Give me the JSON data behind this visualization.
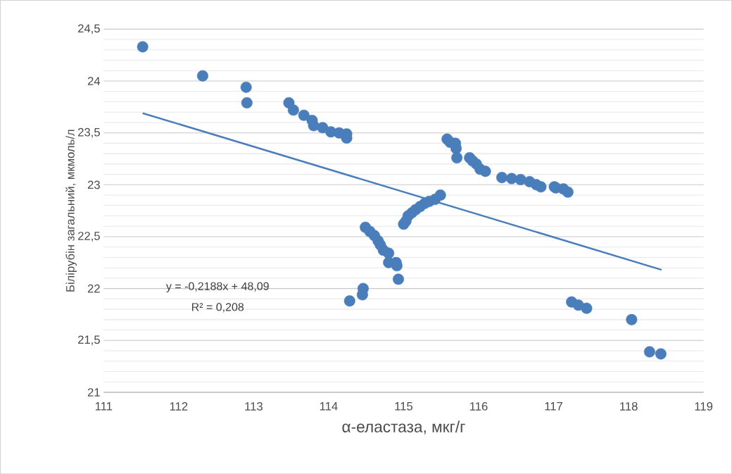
{
  "chart_data": {
    "type": "scatter",
    "xlabel": "α-еластаза, мкг/г",
    "ylabel": "Білірубін загальний, мкмоль/л",
    "xlim": [
      111,
      119
    ],
    "ylim": [
      21,
      24.5
    ],
    "xticks": [
      111,
      112,
      113,
      114,
      115,
      116,
      117,
      118,
      119
    ],
    "yticks": [
      21,
      {
        "value": 21.5,
        "label": "21,5"
      },
      22,
      {
        "value": 22.5,
        "label": "22,5"
      },
      23,
      {
        "value": 23.5,
        "label": "23,5"
      },
      24,
      {
        "value": 24.5,
        "label": "24,5"
      }
    ],
    "grid": "y",
    "annotations": [
      "y = -0,2188x + 48,09",
      "R² = 0,208"
    ],
    "series": [
      {
        "marker": "circle",
        "color": "#4a7ebb",
        "x": [
          111.52,
          112.32,
          112.9,
          112.91,
          113.47,
          113.53,
          113.67,
          113.78,
          113.8,
          113.92,
          114.03,
          114.14,
          114.24,
          114.24,
          114.49,
          114.55,
          114.61,
          114.66,
          114.69,
          114.73,
          114.8,
          114.8,
          114.9,
          114.91,
          114.93,
          114.46,
          114.45,
          114.28,
          115.0,
          115.03,
          115.06,
          115.11,
          115.16,
          115.22,
          115.28,
          115.34,
          115.42,
          115.49,
          115.58,
          115.62,
          115.69,
          115.7,
          115.71,
          115.88,
          115.92,
          115.97,
          116.02,
          116.09,
          116.31,
          116.44,
          116.56,
          116.68,
          116.77,
          116.83,
          117.01,
          117.03,
          117.13,
          117.19,
          117.24,
          117.33,
          117.44,
          118.04,
          118.28,
          118.43
        ],
        "values": [
          24.33,
          24.05,
          23.94,
          23.79,
          23.79,
          23.72,
          23.67,
          23.62,
          23.57,
          23.55,
          23.51,
          23.5,
          23.49,
          23.45,
          22.59,
          22.55,
          22.51,
          22.46,
          22.42,
          22.37,
          22.34,
          22.25,
          22.25,
          22.22,
          22.09,
          22.0,
          21.94,
          21.88,
          22.62,
          22.65,
          22.7,
          22.73,
          22.76,
          22.79,
          22.82,
          22.84,
          22.86,
          22.9,
          23.44,
          23.41,
          23.4,
          23.35,
          23.26,
          23.26,
          23.23,
          23.2,
          23.15,
          23.13,
          23.07,
          23.06,
          23.05,
          23.03,
          23.0,
          22.98,
          22.98,
          22.97,
          22.96,
          22.93,
          21.87,
          21.84,
          21.81,
          21.7,
          21.39,
          21.37
        ]
      },
      {
        "type": "line",
        "marker": "none",
        "color": "#4a7ebb",
        "x": [
          111.52,
          118.44
        ],
        "values": [
          23.69,
          22.18
        ]
      }
    ]
  }
}
